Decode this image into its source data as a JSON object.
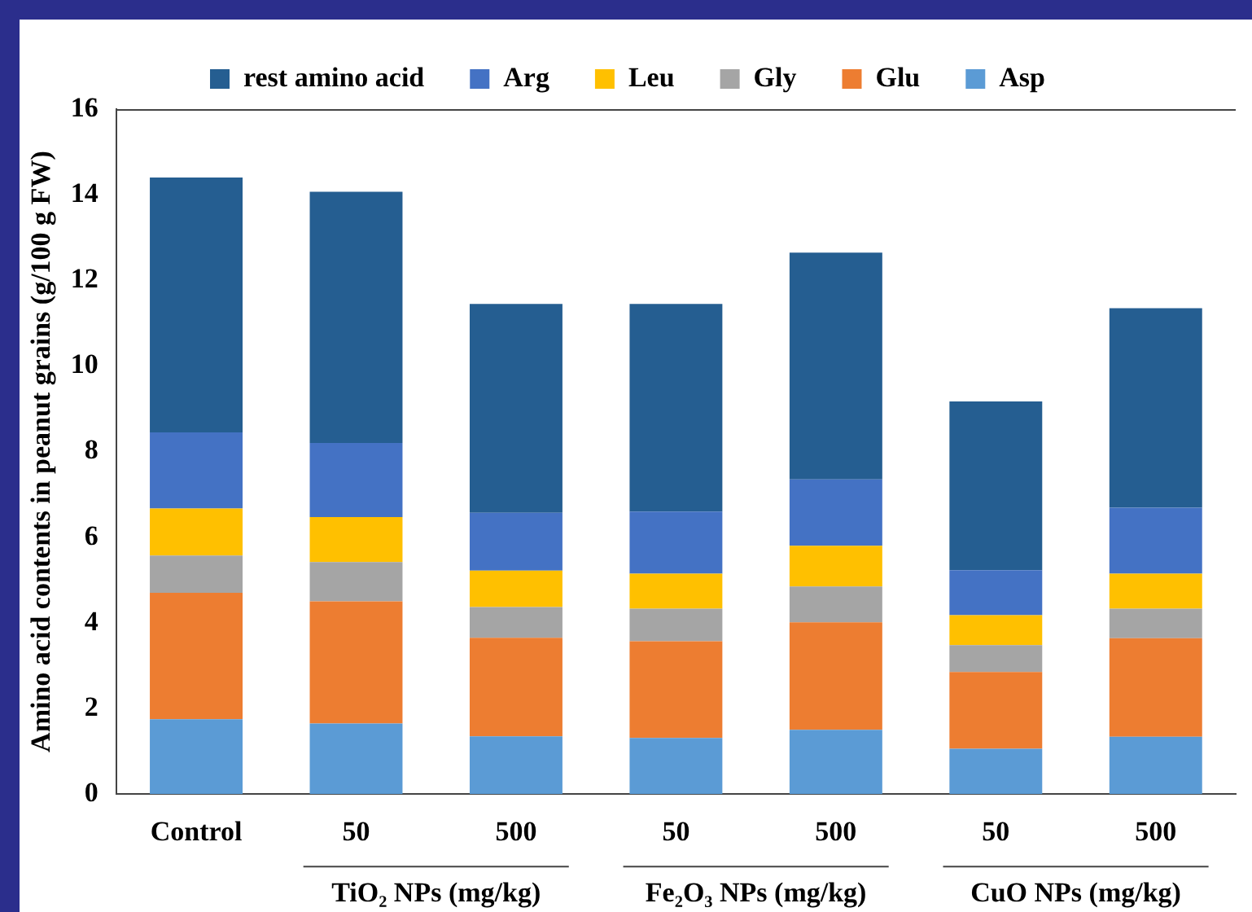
{
  "chart_data": {
    "type": "bar",
    "stacked": true,
    "ylabel": "Amino acid contents in peanut grains (g/100 g FW)",
    "categories": [
      "Control",
      "50",
      "500",
      "50",
      "500",
      "50",
      "500"
    ],
    "series": [
      {
        "name": "Asp",
        "color": "#5b9bd5",
        "values": [
          1.75,
          1.65,
          1.35,
          1.31,
          1.5,
          1.06,
          1.34
        ]
      },
      {
        "name": "Glu",
        "color": "#ed7d31",
        "values": [
          2.95,
          2.85,
          2.3,
          2.26,
          2.51,
          1.79,
          2.3
        ]
      },
      {
        "name": "Gly",
        "color": "#a5a5a5",
        "values": [
          0.87,
          0.92,
          0.72,
          0.76,
          0.84,
          0.63,
          0.69
        ]
      },
      {
        "name": "Leu",
        "color": "#ffc000",
        "values": [
          1.1,
          1.05,
          0.85,
          0.82,
          0.95,
          0.7,
          0.82
        ]
      },
      {
        "name": "Arg",
        "color": "#4472c4",
        "values": [
          1.78,
          1.73,
          1.35,
          1.45,
          1.55,
          1.05,
          1.54
        ]
      },
      {
        "name": "rest amino acid",
        "color": "#255e91",
        "values": [
          5.95,
          5.87,
          4.88,
          4.85,
          5.3,
          3.94,
          4.66
        ]
      }
    ],
    "ylim": [
      0,
      16
    ],
    "yticks": [
      0,
      2,
      4,
      6,
      8,
      10,
      12,
      14,
      16
    ],
    "grid": false,
    "legend": "top",
    "annotations": [
      "TiO₂ NPs (mg/kg)",
      "Fe₂O₃ NPs (mg/kg)",
      "CuO NPs (mg/kg)"
    ]
  }
}
